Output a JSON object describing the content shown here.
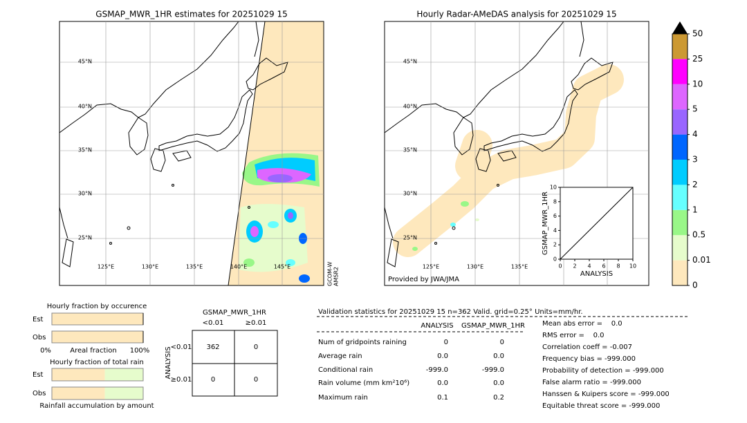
{
  "left_map": {
    "title": "GSMAP_MWR_1HR estimates for 20251029 15",
    "lat_labels": [
      "45°N",
      "40°N",
      "35°N",
      "30°N",
      "25°N"
    ],
    "lon_labels": [
      "125°E",
      "130°E",
      "135°E",
      "140°E",
      "145°E"
    ],
    "satellite": [
      "GCOM-W",
      "AMSR2"
    ]
  },
  "right_map": {
    "title": "Hourly Radar-AMeDAS analysis for 20251029 15",
    "lat_labels": [
      "45°N",
      "40°N",
      "35°N",
      "30°N",
      "25°N"
    ],
    "lon_labels": [
      "125°E",
      "130°E",
      "135°E"
    ],
    "credit": "Provided by JWA/JMA",
    "inset": {
      "xlabel": "ANALYSIS",
      "ylabel": "GSMAP_MWR_1HR",
      "xlim": [
        0,
        10
      ],
      "ylim": [
        0,
        10
      ],
      "xticks": [
        0,
        2,
        4,
        6,
        8,
        10
      ],
      "yticks": [
        0,
        2,
        4,
        6,
        8,
        10
      ]
    }
  },
  "colorbar": {
    "levels": [
      0,
      0.01,
      0.5,
      1,
      2,
      3,
      4,
      5,
      10,
      25,
      50
    ],
    "colors": [
      "#fee8bd",
      "#e6fccc",
      "#99f788",
      "#66ffff",
      "#00ccff",
      "#0066ff",
      "#9966ff",
      "#dd66ff",
      "#ff00ff",
      "#cc9933"
    ]
  },
  "fraction_occurrence": {
    "title": "Hourly fraction by occurence",
    "rows": [
      "Est",
      "Obs"
    ],
    "values": [
      100,
      100
    ],
    "color": "#fee8bd",
    "axis_labels": [
      "0%",
      "Areal fraction",
      "100%"
    ]
  },
  "fraction_total_rain": {
    "title": "Hourly fraction of total rain",
    "rows": [
      "Est",
      "Obs"
    ],
    "segments": [
      {
        "color": "#fee8bd",
        "values": [
          58,
          58
        ]
      },
      {
        "color": "#e6fccc",
        "values": [
          42,
          42
        ]
      }
    ],
    "footer": "Rainfall accumulation by amount"
  },
  "contingency": {
    "title": "GSMAP_MWR_1HR",
    "col_labels": [
      "<0.01",
      "≥0.01"
    ],
    "row_title": "ANALYSIS",
    "row_labels": [
      "<0.01",
      "≥0.01"
    ],
    "cells": [
      [
        362,
        0
      ],
      [
        0,
        0
      ]
    ]
  },
  "stats": {
    "title": "Validation statistics for 20251029 15  n=362 Valid. grid=0.25° Units=mm/hr.",
    "headers": [
      "ANALYSIS",
      "GSMAP_MWR_1HR"
    ],
    "rows": [
      [
        "Num of gridpoints raining",
        "0",
        "0"
      ],
      [
        "Average rain",
        "0.0",
        "0.0"
      ],
      [
        "Conditional rain",
        "-999.0",
        "-999.0"
      ],
      [
        "Rain volume (mm km²10⁶)",
        "0.0",
        "0.0"
      ],
      [
        "Maximum rain",
        "0.1",
        "0.2"
      ]
    ]
  },
  "scores": [
    "Mean abs error =    0.0",
    "RMS error =    0.0",
    "Correlation coeff = -0.007",
    "Frequency bias = -999.000",
    "Probability of detection = -999.000",
    "False alarm ratio = -999.000",
    "Hanssen & Kuipers score = -999.000",
    "Equitable threat score = -999.000"
  ]
}
